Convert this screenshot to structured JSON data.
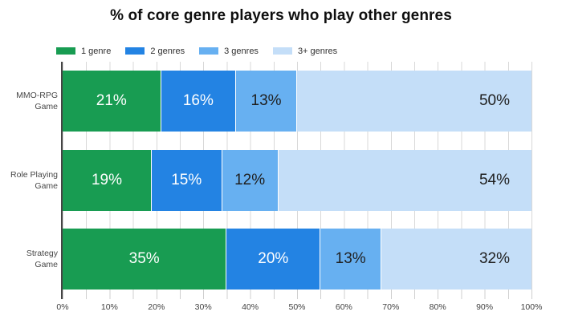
{
  "chart_data": {
    "type": "bar",
    "orientation": "horizontal-stacked",
    "title": "% of core genre players who play other genres",
    "categories": [
      "MMO-RPG\nGame",
      "Role Playing\nGame",
      "Strategy\nGame"
    ],
    "series": [
      {
        "name": "1 genre",
        "color": "#189c52",
        "label_color": "#ffffff",
        "values": [
          21,
          19,
          35
        ]
      },
      {
        "name": "2 genres",
        "color": "#2383e3",
        "label_color": "#ffffff",
        "values": [
          16,
          15,
          20
        ]
      },
      {
        "name": "3 genres",
        "color": "#67b0f1",
        "label_color": "#1f1f1f",
        "values": [
          13,
          12,
          13
        ]
      },
      {
        "name": "3+ genres",
        "color": "#c4def8",
        "label_color": "#1f1f1f",
        "values": [
          50,
          54,
          32
        ]
      }
    ],
    "segment_label_suffix": "%",
    "x_axis": {
      "ticks": [
        "0%",
        "10%",
        "20%",
        "30%",
        "40%",
        "50%",
        "60%",
        "70%",
        "80%",
        "90%",
        "100%"
      ],
      "min": 0,
      "max": 100,
      "minor_tick_step_percent": 5
    },
    "legend_position": "top-left",
    "grid": {
      "vertical": true,
      "step_percent": 5,
      "color": "#d8d8d8"
    },
    "axis_color": "#454545",
    "text_color": "#474747"
  }
}
